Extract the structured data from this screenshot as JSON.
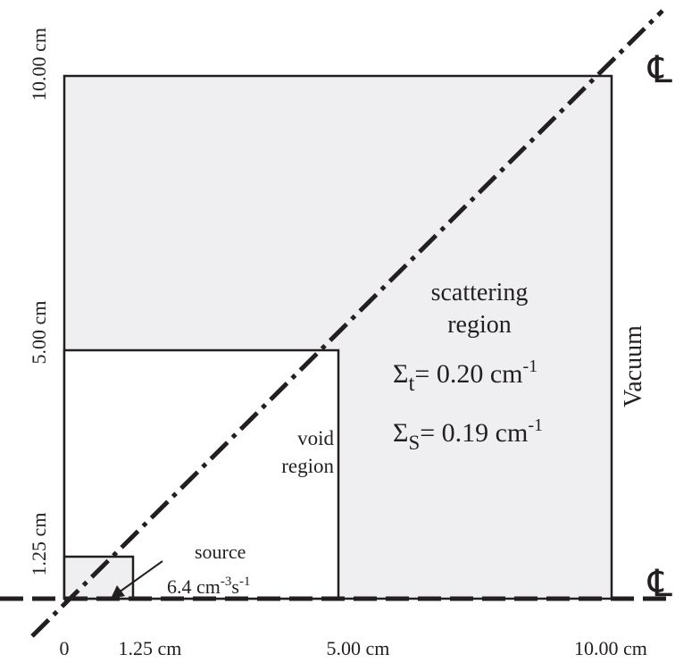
{
  "diagram": {
    "axis_ticks": {
      "x": [
        "0",
        "1.25 cm",
        "5.00 cm",
        "10.00 cm"
      ],
      "y": [
        "1.25 cm",
        "5.00 cm",
        "10.00 cm"
      ]
    },
    "regions": {
      "source": {
        "label": "source",
        "value": "6.4 cm",
        "exp1": "-3",
        "unit2": "s",
        "exp2": "-1"
      },
      "void": {
        "line1": "void",
        "line2": "region"
      },
      "scattering": {
        "line1": "scattering",
        "line2": "region",
        "sigma_t": {
          "symbol": "Σ",
          "sub": "t",
          "value": "= 0.20 cm",
          "exp": "-1"
        },
        "sigma_s": {
          "symbol": "Σ",
          "sub": "S",
          "value": "= 0.19 cm",
          "exp": "-1"
        }
      }
    },
    "boundary_label": "Vacuum",
    "symmetry_symbol": "℄",
    "colors": {
      "fill": "#efeff1",
      "line": "#231f20"
    }
  }
}
